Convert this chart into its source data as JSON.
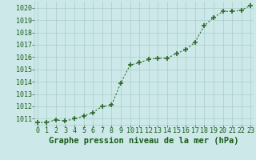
{
  "x": [
    0,
    1,
    2,
    3,
    4,
    5,
    6,
    7,
    8,
    9,
    10,
    11,
    12,
    13,
    14,
    15,
    16,
    17,
    18,
    19,
    20,
    21,
    22,
    23
  ],
  "y": [
    1010.7,
    1010.7,
    1010.9,
    1010.8,
    1011.0,
    1011.2,
    1011.5,
    1012.0,
    1012.1,
    1013.9,
    1015.35,
    1015.55,
    1015.8,
    1015.9,
    1015.9,
    1016.3,
    1016.6,
    1017.2,
    1018.55,
    1019.2,
    1019.7,
    1019.7,
    1019.8,
    1020.2
  ],
  "line_color": "#2d6a2d",
  "marker": "+",
  "marker_size": 5,
  "marker_lw": 1.2,
  "line_width": 0.8,
  "bg_color": "#cce8e8",
  "grid_color": "#aacccc",
  "xlabel": "Graphe pression niveau de la mer (hPa)",
  "xlabel_color": "#1a5c1a",
  "xlabel_fontsize": 7.5,
  "tick_color": "#1a5c1a",
  "tick_fontsize": 6.0,
  "ylim": [
    1010.5,
    1020.5
  ],
  "yticks": [
    1011,
    1012,
    1013,
    1014,
    1015,
    1016,
    1017,
    1018,
    1019,
    1020
  ],
  "xticks": [
    0,
    1,
    2,
    3,
    4,
    5,
    6,
    7,
    8,
    9,
    10,
    11,
    12,
    13,
    14,
    15,
    16,
    17,
    18,
    19,
    20,
    21,
    22,
    23
  ],
  "xlim": [
    -0.3,
    23.3
  ]
}
